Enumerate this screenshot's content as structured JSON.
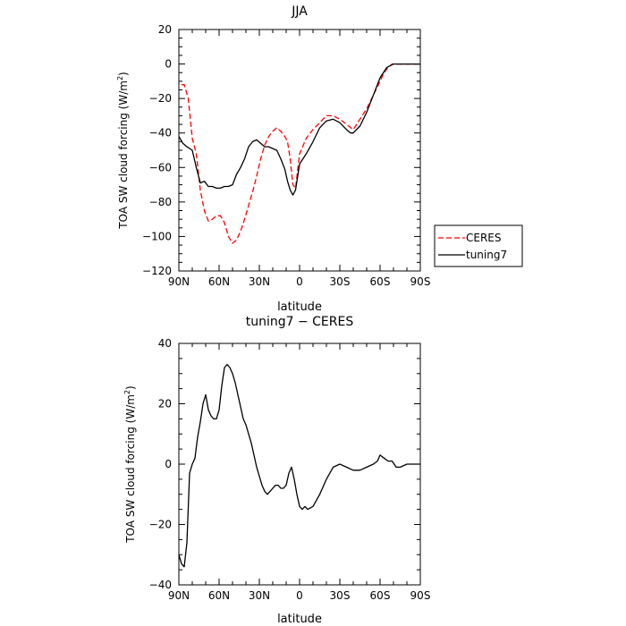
{
  "chart_data": [
    {
      "type": "line",
      "title": "JJA",
      "xlabel": "latitude",
      "ylabel": "TOA SW cloud forcing (W/m²)",
      "ylabel_parts": {
        "main": "TOA SW cloud forcing (W/m",
        "sup": "2",
        "close": ")"
      },
      "xlim": [
        90,
        -90
      ],
      "ylim": [
        -120,
        20
      ],
      "xticks": [
        90,
        60,
        30,
        0,
        -30,
        -60,
        -90
      ],
      "xtick_labels": [
        "90N",
        "60N",
        "30N",
        "0",
        "30S",
        "60S",
        "90S"
      ],
      "yticks": [
        20,
        0,
        -20,
        -40,
        -60,
        -80,
        -100,
        -120
      ],
      "ytick_labels": [
        "20",
        "0",
        "−20",
        "−40",
        "−60",
        "−80",
        "−100",
        "−120"
      ],
      "legend_position": "outside-right",
      "series": [
        {
          "name": "CERES",
          "color": "#ff0000",
          "dash": "dashed",
          "x": [
            88,
            86,
            83,
            80,
            77,
            74,
            71,
            68,
            65,
            62,
            59,
            56,
            53,
            50,
            47,
            44,
            41,
            38,
            35,
            32,
            29,
            26,
            23,
            20,
            17,
            14,
            11,
            9,
            7,
            5,
            3,
            0,
            -5,
            -10,
            -15,
            -20,
            -25,
            -30,
            -35,
            -40,
            -45,
            -50,
            -55,
            -60,
            -63,
            -66,
            -69,
            -72,
            -75,
            -80,
            -85,
            -90
          ],
          "values": [
            -12,
            -12,
            -20,
            -43,
            -52,
            -73,
            -85,
            -91,
            -90,
            -88,
            -88,
            -92,
            -100,
            -104,
            -102,
            -97,
            -90,
            -82,
            -74,
            -65,
            -55,
            -47,
            -42,
            -39,
            -37,
            -39,
            -42,
            -45,
            -55,
            -70,
            -72,
            -52,
            -43,
            -38,
            -34,
            -30,
            -30,
            -32,
            -35,
            -38,
            -32,
            -26,
            -18,
            -10,
            -5,
            -2,
            0,
            0,
            0,
            0,
            0,
            0
          ]
        },
        {
          "name": "tuning7",
          "color": "#000000",
          "dash": "solid",
          "x": [
            90,
            87,
            84,
            80,
            77,
            74,
            71,
            68,
            65,
            62,
            59,
            56,
            53,
            50,
            47,
            44,
            41,
            38,
            35,
            32,
            29,
            26,
            23,
            20,
            17,
            14,
            11,
            9,
            7,
            5,
            3,
            0,
            -5,
            -10,
            -15,
            -20,
            -25,
            -30,
            -35,
            -38,
            -40,
            -45,
            -50,
            -55,
            -60,
            -65,
            -70,
            -75,
            -80,
            -85,
            -90
          ],
          "values": [
            -42,
            -46,
            -48,
            -50,
            -60,
            -69,
            -68,
            -71,
            -71,
            -72,
            -72,
            -71,
            -71,
            -70,
            -64,
            -60,
            -55,
            -48,
            -45,
            -44,
            -46,
            -48,
            -48,
            -49,
            -50,
            -55,
            -61,
            -68,
            -73,
            -76,
            -73,
            -58,
            -52,
            -45,
            -37,
            -33,
            -32,
            -34,
            -38,
            -40,
            -40,
            -36,
            -28,
            -18,
            -8,
            -2,
            0,
            0,
            0,
            0,
            0
          ]
        }
      ]
    },
    {
      "type": "line",
      "title": "tuning7 − CERES",
      "xlabel": "latitude",
      "ylabel": "TOA SW cloud forcing (W/m²)",
      "ylabel_parts": {
        "main": "TOA SW cloud forcing (W/m",
        "sup": "2",
        "close": ")"
      },
      "xlim": [
        90,
        -90
      ],
      "ylim": [
        -40,
        40
      ],
      "xticks": [
        90,
        60,
        30,
        0,
        -30,
        -60,
        -90
      ],
      "xtick_labels": [
        "90N",
        "60N",
        "30N",
        "0",
        "30S",
        "60S",
        "90S"
      ],
      "yticks": [
        40,
        20,
        0,
        -20,
        -40
      ],
      "ytick_labels": [
        "40",
        "20",
        "0",
        "−20",
        "−40"
      ],
      "series": [
        {
          "name": "tuning7 − CERES",
          "color": "#000000",
          "dash": "solid",
          "x": [
            90,
            88,
            86,
            84,
            82,
            80,
            78,
            76,
            74,
            72,
            70,
            68,
            66,
            64,
            62,
            60,
            58,
            56,
            54,
            52,
            50,
            48,
            46,
            44,
            42,
            40,
            38,
            36,
            34,
            32,
            30,
            28,
            26,
            24,
            22,
            20,
            18,
            16,
            14,
            12,
            10,
            8,
            6,
            4,
            2,
            0,
            -2,
            -4,
            -6,
            -10,
            -15,
            -20,
            -25,
            -30,
            -35,
            -40,
            -45,
            -50,
            -55,
            -58,
            -60,
            -63,
            -66,
            -69,
            -72,
            -75,
            -80,
            -85,
            -90
          ],
          "values": [
            -30,
            -33,
            -34,
            -26,
            -3,
            0,
            2,
            9,
            14,
            20,
            23,
            18,
            16,
            15,
            15,
            18,
            26,
            32,
            33,
            32,
            30,
            27,
            23,
            19,
            15,
            13,
            10,
            7,
            3,
            -1,
            -4,
            -7,
            -9,
            -10,
            -9,
            -8,
            -7,
            -7,
            -8,
            -8,
            -7,
            -3,
            -1,
            -5,
            -10,
            -14,
            -15,
            -14,
            -15,
            -14,
            -10,
            -5,
            -1,
            0,
            -1,
            -2,
            -2,
            -1,
            0,
            1,
            3,
            2,
            1,
            1,
            -1,
            -1,
            0,
            0,
            0
          ]
        }
      ]
    }
  ]
}
